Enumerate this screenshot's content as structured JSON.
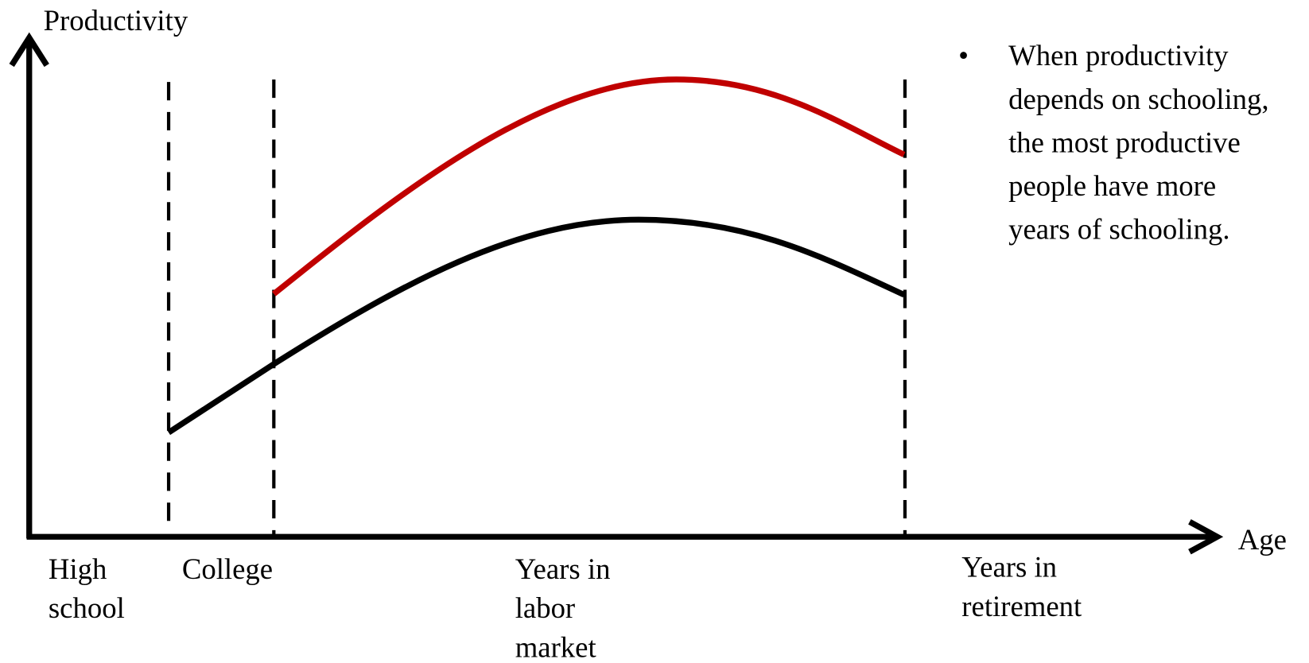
{
  "axes": {
    "y_label": "Productivity",
    "x_label": "Age"
  },
  "stages": [
    {
      "lines": [
        "High",
        "school"
      ]
    },
    {
      "lines": [
        "College"
      ]
    },
    {
      "lines": [
        "Years in",
        "labor",
        "market"
      ]
    },
    {
      "lines": [
        "Years in",
        "retirement"
      ]
    }
  ],
  "note": {
    "bullet": "•",
    "lines": [
      "When productivity",
      "depends on schooling,",
      "the most productive",
      "people have more",
      "years of schooling."
    ]
  }
}
